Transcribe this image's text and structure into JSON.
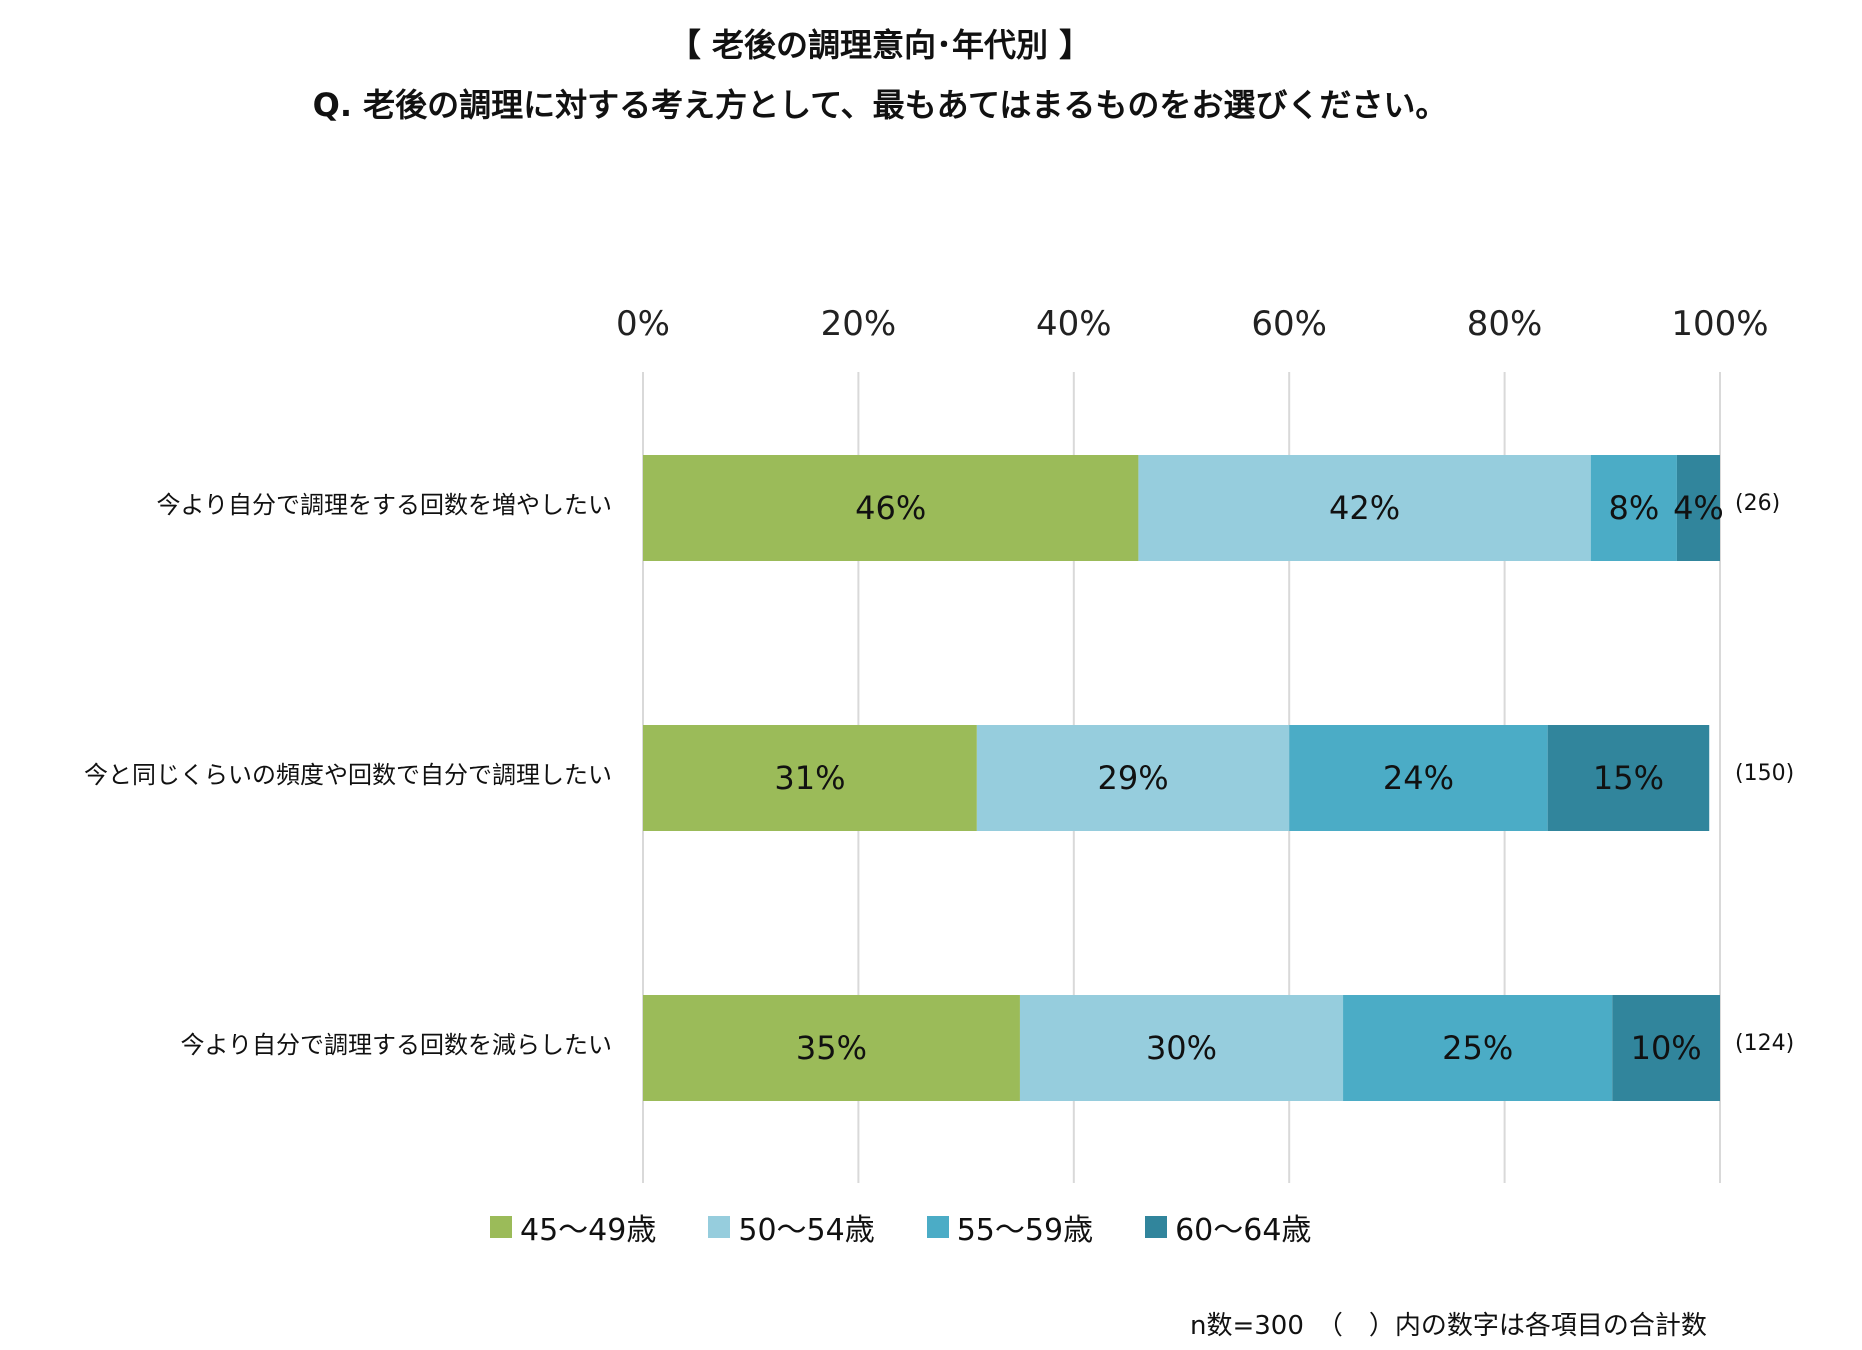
{
  "chart_data": {
    "type": "bar",
    "orientation": "horizontal",
    "stacked": true,
    "title": "【 老後の調理意向･年代別 】",
    "subtitle": "Q. 老後の調理に対する考え方として、最もあてはまるものをお選びください。",
    "categories": [
      "今より自分で調理をする回数を増やしたい",
      "今と同じくらいの頻度や回数で自分で調理したい",
      "今より自分で調理する回数を減らしたい"
    ],
    "category_totals": [
      "(26)",
      "(150)",
      "(124)"
    ],
    "series": [
      {
        "name": "45～49歳",
        "values": [
          46,
          31,
          35
        ],
        "labels": [
          "46%",
          "31%",
          "35%"
        ]
      },
      {
        "name": "50～54歳",
        "values": [
          42,
          29,
          30
        ],
        "labels": [
          "42%",
          "29%",
          "30%"
        ]
      },
      {
        "name": "55～59歳",
        "values": [
          8,
          24,
          25
        ],
        "labels": [
          "8%",
          "24%",
          "25%"
        ]
      },
      {
        "name": "60～64歳",
        "values": [
          4,
          15,
          10
        ],
        "labels": [
          "4%",
          "15%",
          "10%"
        ]
      }
    ],
    "xlim": [
      0,
      100
    ],
    "ticks": [
      0,
      20,
      40,
      60,
      80,
      100
    ],
    "tick_labels": [
      "0%",
      "20%",
      "40%",
      "60%",
      "80%",
      "100%"
    ],
    "axis_position": "top",
    "grid": true,
    "legend": "bottom",
    "colors": [
      "#9bbb59",
      "#96cddd",
      "#4bacc6",
      "#31859c"
    ]
  },
  "footnote": "n数=300　（　）内の数字は各項目の合計数"
}
